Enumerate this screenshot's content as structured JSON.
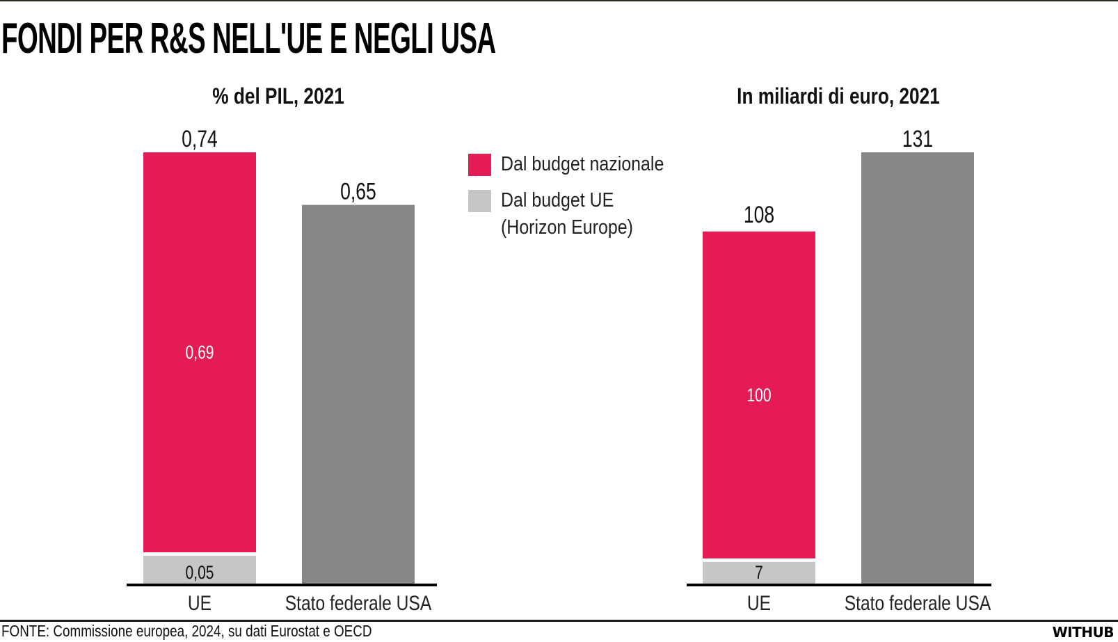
{
  "header": {
    "title": "FONDI PER R&S NELL'UE E NEGLI USA"
  },
  "legend": {
    "items": [
      {
        "label": "Dal budget nazionale",
        "color": "#e41b54"
      },
      {
        "label_line1": "Dal budget UE",
        "label_line2": "(Horizon Europe)",
        "color": "#c6c6c6"
      }
    ]
  },
  "colors": {
    "national": "#e41b54",
    "eu_budget": "#c6c6c6",
    "usa": "#878785",
    "axis": "#000000"
  },
  "chart_data": [
    {
      "type": "bar",
      "stacked": true,
      "title": "% del PIL, 2021",
      "categories": [
        "UE",
        "Stato federale USA"
      ],
      "series": [
        {
          "name": "Dal budget UE (Horizon Europe)",
          "values": [
            0.05,
            null
          ],
          "labels": [
            "0,05",
            null
          ]
        },
        {
          "name": "Dal budget nazionale",
          "values": [
            0.69,
            null
          ],
          "labels": [
            "0,69",
            null
          ]
        },
        {
          "name": "Stato federale USA",
          "values": [
            null,
            0.65
          ],
          "labels": [
            null,
            null
          ]
        }
      ],
      "totals": [
        0.74,
        0.65
      ],
      "total_labels": [
        "0,74",
        "0,65"
      ],
      "ylim": [
        0,
        0.74
      ],
      "grid": false
    },
    {
      "type": "bar",
      "stacked": true,
      "title": "In miliardi di euro, 2021",
      "categories": [
        "UE",
        "Stato federale USA"
      ],
      "series": [
        {
          "name": "Dal budget UE (Horizon Europe)",
          "values": [
            7,
            null
          ],
          "labels": [
            "7",
            null
          ]
        },
        {
          "name": "Dal budget nazionale",
          "values": [
            100,
            null
          ],
          "labels": [
            "100",
            null
          ]
        },
        {
          "name": "Stato federale USA",
          "values": [
            null,
            131
          ],
          "labels": [
            null,
            null
          ]
        }
      ],
      "totals": [
        108,
        131
      ],
      "total_labels": [
        "108",
        "131"
      ],
      "ylim": [
        0,
        131
      ],
      "grid": false
    }
  ],
  "footer": {
    "source": "FONTE: Commissione europea, 2024, su dati Eurostat e OECD",
    "brand": "WITHUB"
  }
}
